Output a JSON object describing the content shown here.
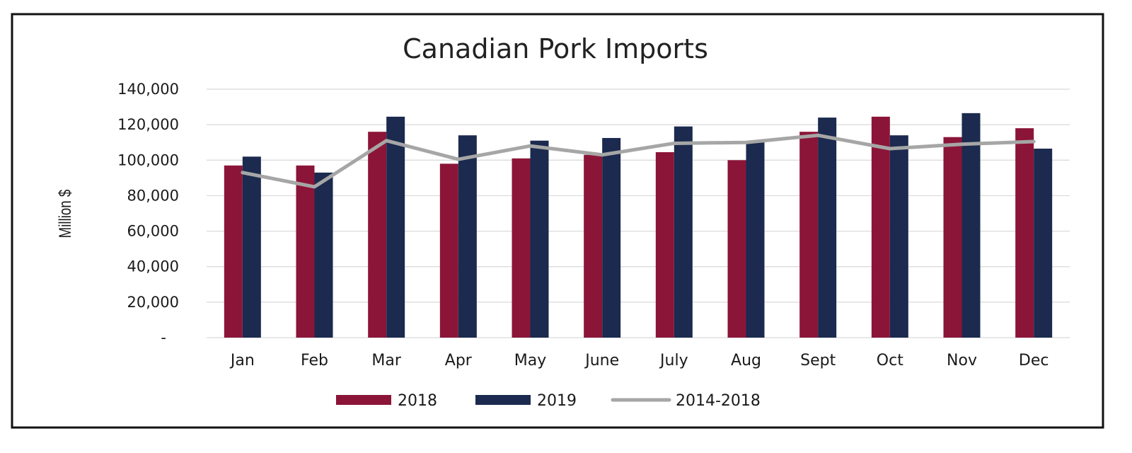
{
  "chart_data": {
    "type": "bar",
    "title": "Canadian Pork Imports",
    "xlabel": "",
    "ylabel": "Million $",
    "ylim": [
      0,
      140000
    ],
    "yticks": [
      {
        "value": 0,
        "label": "-"
      },
      {
        "value": 20000,
        "label": "20,000"
      },
      {
        "value": 40000,
        "label": "40,000"
      },
      {
        "value": 60000,
        "label": "60,000"
      },
      {
        "value": 80000,
        "label": "80,000"
      },
      {
        "value": 100000,
        "label": "100,000"
      },
      {
        "value": 120000,
        "label": "120,000"
      },
      {
        "value": 140000,
        "label": "140,000"
      }
    ],
    "grid": true,
    "legend_position": "bottom",
    "categories": [
      "Jan",
      "Feb",
      "Mar",
      "Apr",
      "May",
      "June",
      "July",
      "Aug",
      "Sept",
      "Oct",
      "Nov",
      "Dec"
    ],
    "series": [
      {
        "name": "2018",
        "type": "bar",
        "color": "#8b1538",
        "values": [
          97000,
          97000,
          116000,
          98000,
          101000,
          103000,
          104500,
          100000,
          116000,
          124500,
          113000,
          118000
        ]
      },
      {
        "name": "2019",
        "type": "bar",
        "color": "#1b2a4e",
        "values": [
          102000,
          93000,
          124500,
          114000,
          111000,
          112500,
          119000,
          110000,
          124000,
          114000,
          126500,
          106500
        ]
      },
      {
        "name": "2014-2018",
        "type": "line",
        "color": "#a6a6a6",
        "values": [
          93000,
          85000,
          111000,
          100500,
          108000,
          103000,
          109500,
          110000,
          114000,
          106500,
          109000,
          110500
        ]
      }
    ]
  }
}
